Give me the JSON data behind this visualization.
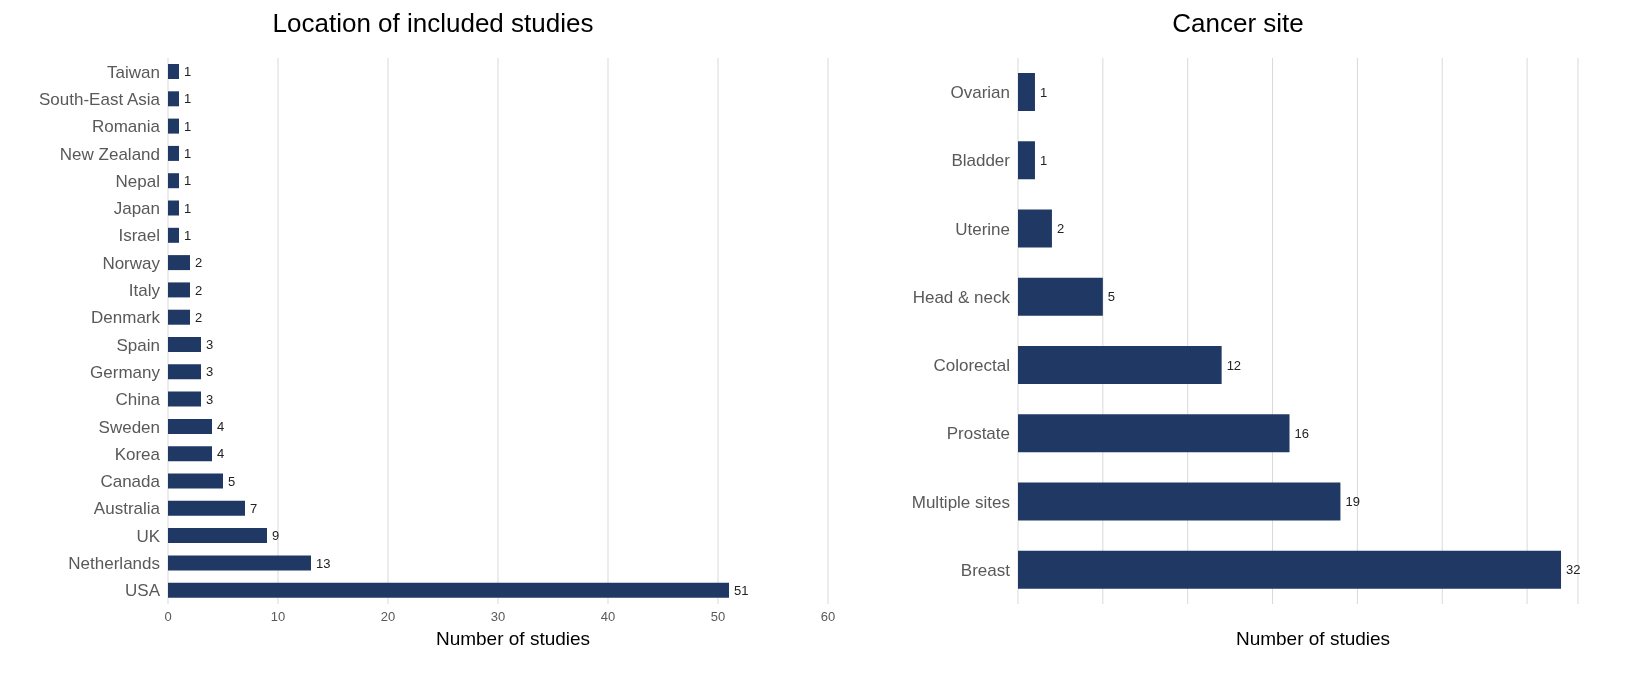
{
  "chart_data": [
    {
      "type": "bar",
      "orientation": "horizontal",
      "title": "Location of included studies",
      "xlabel": "Number of studies",
      "categories": [
        "Taiwan",
        "South-East Asia",
        "Romania",
        "New Zealand",
        "Nepal",
        "Japan",
        "Israel",
        "Norway",
        "Italy",
        "Denmark",
        "Spain",
        "Germany",
        "China",
        "Sweden",
        "Korea",
        "Canada",
        "Australia",
        "UK",
        "Netherlands",
        "USA"
      ],
      "series": [
        {
          "color": "#203864",
          "values": [
            1,
            1,
            1,
            1,
            1,
            1,
            1,
            2,
            2,
            2,
            3,
            3,
            3,
            4,
            4,
            5,
            7,
            9,
            13,
            51
          ]
        }
      ],
      "xlim": [
        0,
        60
      ],
      "xticks": [
        0,
        10,
        20,
        30,
        40,
        50,
        60
      ],
      "grid": "x",
      "data_labels": true,
      "legend": false
    },
    {
      "type": "bar",
      "orientation": "horizontal",
      "title": "Cancer site",
      "xlabel": "Number of studies",
      "categories": [
        "Ovarian",
        "Bladder",
        "Uterine",
        "Head & neck",
        "Colorectal",
        "Prostate",
        "Multiple sites",
        "Breast"
      ],
      "series": [
        {
          "color": "#203864",
          "values": [
            1,
            1,
            2,
            5,
            12,
            16,
            19,
            32
          ]
        }
      ],
      "xlim": [
        0,
        33
      ],
      "xticks": [
        {
          "value": 0,
          "label": null
        },
        {
          "value": 5,
          "label": null
        },
        {
          "value": 10,
          "label": null
        },
        {
          "value": 15,
          "label": null
        },
        {
          "value": 20,
          "label": null
        },
        {
          "value": 25,
          "label": null
        },
        {
          "value": 30,
          "label": null
        }
      ],
      "grid": "x",
      "data_labels": true,
      "tick_labels": "y",
      "legend": false
    }
  ]
}
